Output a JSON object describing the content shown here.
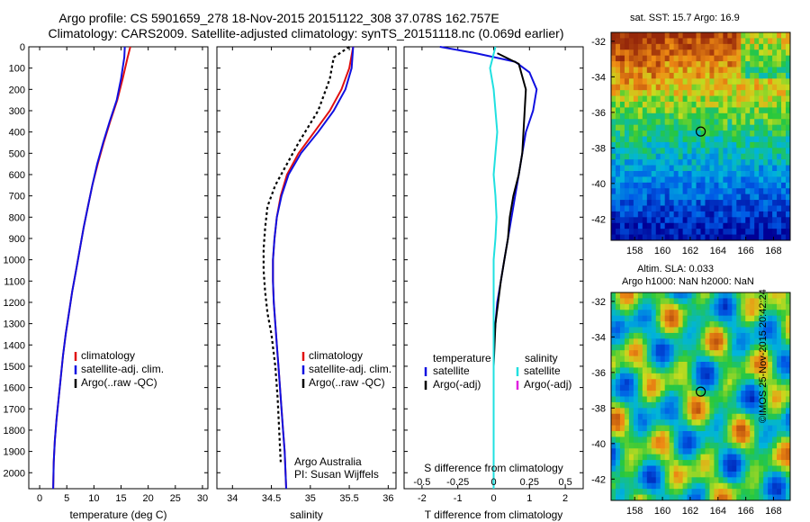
{
  "title_line1": "Argo profile: CS 5901659_278 18-Nov-2015 20151122_308 37.078S 162.757E",
  "title_line2": "Climatology: CARS2009. Satellite-adjusted climatology: synTS_20151118.nc (0.069d earlier)",
  "copyright": "©IMOS 25-Nov-2015 20:42:24",
  "colors": {
    "climatology": "#e01010",
    "satellite": "#1010e0",
    "argo": "#000000",
    "sal_sat": "#20e0e0",
    "sal_argo": "#e020e0"
  },
  "chart_data": [
    {
      "type": "line",
      "id": "temperature",
      "xlabel": "temperature (deg C)",
      "ylabel": "",
      "xlim": [
        -2,
        31
      ],
      "ylim": [
        2075,
        0
      ],
      "xticks": [
        "0",
        "5",
        "10",
        "15",
        "20",
        "25",
        "30"
      ],
      "xtick_values": [
        0,
        5,
        10,
        15,
        20,
        25,
        30
      ],
      "yticks": [
        "0",
        "100",
        "200",
        "300",
        "400",
        "500",
        "600",
        "700",
        "800",
        "900",
        "1000",
        "1100",
        "1200",
        "1300",
        "1400",
        "1500",
        "1600",
        "1700",
        "1800",
        "1900",
        "2000"
      ],
      "legend": [
        "climatology",
        "satellite-adj. clim.",
        "Argo(..raw -QC)"
      ],
      "series": [
        {
          "name": "climatology",
          "color": "#e01010",
          "x": [
            16.7,
            16.2,
            15.3,
            14.3,
            13.0,
            11.8,
            10.7,
            9.7,
            8.9,
            8.1,
            7.4,
            6.7,
            6.0,
            5.4,
            4.8,
            4.3,
            3.9,
            3.5,
            3.1,
            2.8,
            2.6,
            2.5
          ],
          "y": [
            0,
            50,
            150,
            250,
            350,
            450,
            550,
            650,
            750,
            850,
            950,
            1050,
            1150,
            1250,
            1350,
            1450,
            1550,
            1650,
            1750,
            1850,
            1950,
            2075
          ]
        },
        {
          "name": "satellite-adj. clim.",
          "color": "#1010e0",
          "x": [
            15.7,
            15.6,
            15.0,
            14.2,
            12.9,
            11.7,
            10.6,
            9.7,
            8.9,
            8.1,
            7.4,
            6.7,
            6.0,
            5.4,
            4.8,
            4.3,
            3.9,
            3.5,
            3.1,
            2.8,
            2.6,
            2.5
          ],
          "y": [
            0,
            50,
            150,
            250,
            350,
            450,
            550,
            650,
            750,
            850,
            950,
            1050,
            1150,
            1250,
            1350,
            1450,
            1550,
            1650,
            1750,
            1850,
            1950,
            2075
          ]
        }
      ]
    },
    {
      "type": "line",
      "id": "salinity",
      "xlabel": "salinity",
      "xlim": [
        33.8,
        36.1
      ],
      "ylim": [
        2075,
        0
      ],
      "xticks": [
        "34",
        "34.5",
        "35",
        "35.5",
        "36"
      ],
      "xtick_values": [
        34,
        34.5,
        35,
        35.5,
        36
      ],
      "legend": [
        "climatology",
        "satellite-adj. clim.",
        "Argo(..raw -QC)"
      ],
      "annotation": [
        "Argo Australia",
        "PI: Susan Wijffels"
      ],
      "series": [
        {
          "name": "climatology",
          "color": "#e01010",
          "x": [
            35.55,
            35.5,
            35.4,
            35.25,
            35.05,
            34.85,
            34.7,
            34.62,
            34.57,
            34.54,
            34.52,
            34.52,
            34.53,
            34.55,
            34.57,
            34.59,
            34.61,
            34.63,
            34.65,
            34.67,
            34.69
          ],
          "y": [
            0,
            100,
            200,
            300,
            400,
            500,
            600,
            700,
            800,
            900,
            1000,
            1100,
            1200,
            1300,
            1400,
            1500,
            1600,
            1700,
            1800,
            1900,
            2075
          ]
        },
        {
          "name": "satellite-adj. clim.",
          "color": "#1010e0",
          "x": [
            35.55,
            35.53,
            35.45,
            35.3,
            35.1,
            34.88,
            34.72,
            34.63,
            34.57,
            34.54,
            34.52,
            34.52,
            34.53,
            34.55,
            34.57,
            34.59,
            34.61,
            34.63,
            34.65,
            34.67,
            34.69
          ],
          "y": [
            0,
            100,
            200,
            300,
            400,
            500,
            600,
            700,
            800,
            900,
            1000,
            1100,
            1200,
            1300,
            1400,
            1500,
            1600,
            1700,
            1800,
            1900,
            2075
          ]
        },
        {
          "name": "Argo(..raw -QC)",
          "color": "#000000",
          "dashed": true,
          "x": [
            35.5,
            35.3,
            35.25,
            35.1,
            34.85,
            34.7,
            34.55,
            34.45,
            34.42,
            34.4,
            34.4,
            34.42,
            34.45,
            34.5,
            34.55,
            34.58,
            34.6,
            34.62
          ],
          "y": [
            0,
            50,
            150,
            300,
            450,
            550,
            650,
            750,
            850,
            950,
            1050,
            1150,
            1250,
            1350,
            1500,
            1650,
            1800,
            1950
          ]
        }
      ]
    },
    {
      "type": "line",
      "id": "difference",
      "xlabel": "T difference from climatology",
      "xlabel_top": "S difference from climatology",
      "xlim": [
        -2.5,
        2.5
      ],
      "ylim": [
        2075,
        0
      ],
      "xticks": [
        "-2",
        "-1",
        "0",
        "1",
        "2"
      ],
      "xtick_values": [
        -2,
        -1,
        0,
        1,
        2
      ],
      "sticks": [
        "-0.5",
        "-0.25",
        "0",
        "0.25",
        "0.5"
      ],
      "stick_values": [
        -2,
        -1,
        0,
        1,
        2
      ],
      "legend_temperature": {
        "header": "temperature",
        "items": [
          "satellite",
          "Argo(-adj)"
        ]
      },
      "legend_salinity": {
        "header": "salinity",
        "items": [
          "satellite",
          "Argo(-adj)"
        ]
      },
      "series": [
        {
          "name": "temperature satellite",
          "color": "#1010e0",
          "x": [
            -1.5,
            -0.5,
            0.6,
            1.0,
            1.2,
            1.1,
            0.9,
            0.8,
            0.7,
            0.6,
            0.5,
            0.4,
            0.3,
            0.2,
            0.1,
            0.05,
            0.0,
            0.0,
            0.0,
            0.0,
            0.0
          ],
          "y": [
            0,
            30,
            70,
            120,
            200,
            300,
            400,
            500,
            600,
            700,
            800,
            900,
            1000,
            1100,
            1200,
            1300,
            1400,
            1500,
            1600,
            1800,
            2075
          ]
        },
        {
          "name": "temperature Argo(-adj)",
          "color": "#000000",
          "x": [
            0.1,
            0.7,
            0.9,
            0.85,
            0.8,
            0.7,
            0.55,
            0.45,
            0.4,
            0.3,
            0.2,
            0.05,
            0.0,
            0.0
          ],
          "y": [
            30,
            80,
            200,
            350,
            500,
            600,
            700,
            800,
            900,
            1000,
            1100,
            1300,
            1500,
            1700
          ]
        },
        {
          "name": "salinity satellite",
          "color": "#20e0e0",
          "x": [
            0.05,
            -0.1,
            0.0,
            0.05,
            0.1,
            0.05,
            0.0,
            0.05,
            0.08,
            0.05,
            0.0,
            0.0,
            0.0,
            0.0,
            0.0
          ],
          "y": [
            0,
            100,
            200,
            300,
            400,
            500,
            600,
            700,
            800,
            900,
            1000,
            1200,
            1500,
            1800,
            2075
          ]
        }
      ]
    },
    {
      "type": "heatmap",
      "id": "sst-map",
      "title": "sat. SST: 15.7  Argo: 16.9",
      "xticks": [
        "158",
        "160",
        "162",
        "164",
        "166",
        "168"
      ],
      "yticks": [
        "-32",
        "-34",
        "-36",
        "-38",
        "-40",
        "-42"
      ],
      "xlim": [
        156.3,
        169.2
      ],
      "ylim": [
        -43.2,
        -31.5
      ],
      "marker": {
        "lon": 162.757,
        "lat": -37.078
      }
    },
    {
      "type": "heatmap",
      "id": "sla-map",
      "title": "Altim. SLA: 0.033",
      "subtitle": "Argo h1000: NaN h2000: NaN",
      "xticks": [
        "158",
        "160",
        "162",
        "164",
        "166",
        "168"
      ],
      "yticks": [
        "-32",
        "-34",
        "-36",
        "-38",
        "-40",
        "-42"
      ],
      "xlim": [
        156.3,
        169.2
      ],
      "ylim": [
        -43.2,
        -31.5
      ],
      "marker": {
        "lon": 162.757,
        "lat": -37.078
      }
    }
  ]
}
